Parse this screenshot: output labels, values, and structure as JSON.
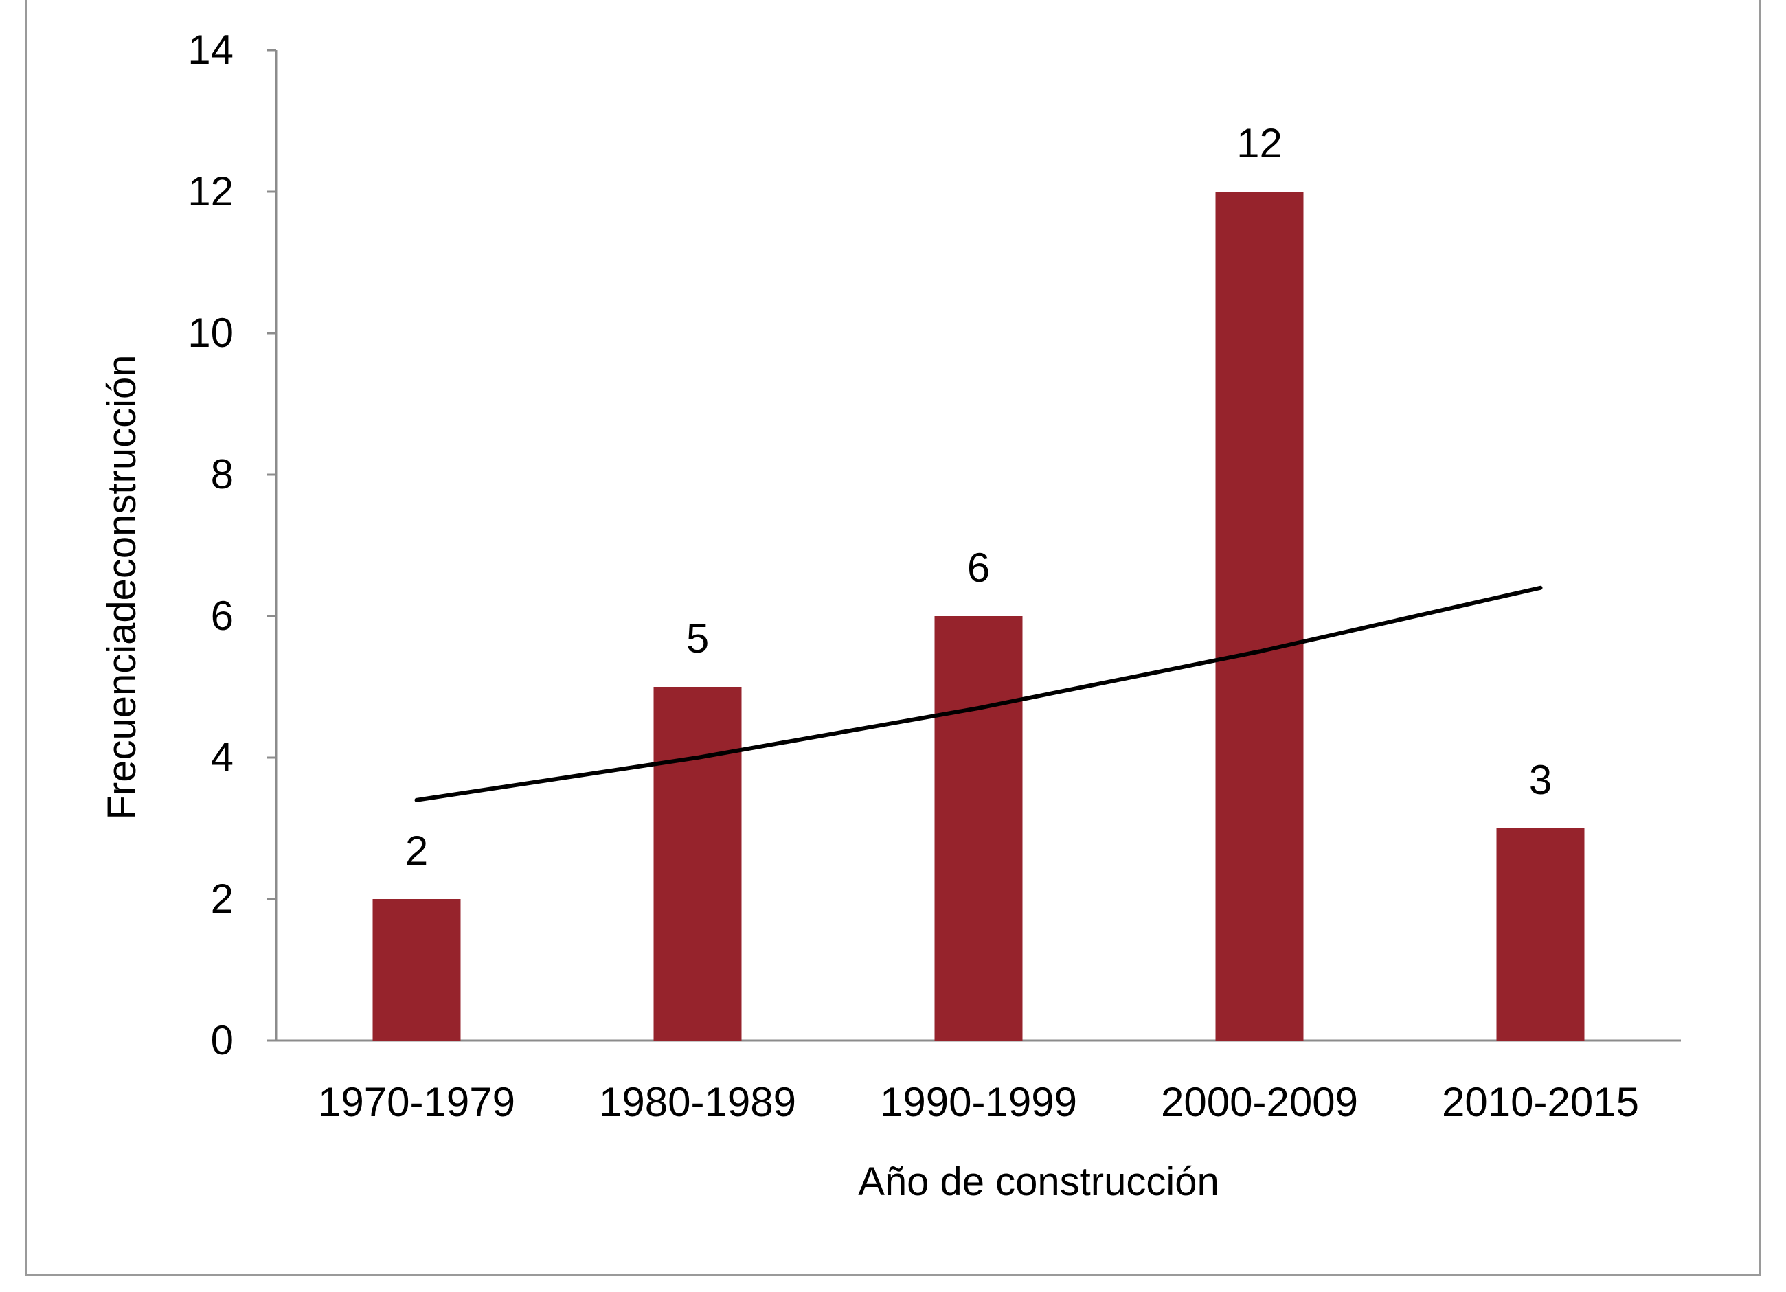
{
  "chart_data": {
    "type": "bar",
    "title": "",
    "xlabel": "Año de construcción",
    "ylabel": "Frecuenciadeconstrucción",
    "categories": [
      "1970-1979",
      "1980-1989",
      "1990-1999",
      "2000-2009",
      "2010-2015"
    ],
    "values": [
      2,
      5,
      6,
      12,
      3
    ],
    "data_labels": [
      "2",
      "5",
      "6",
      "12",
      "3"
    ],
    "ylim": [
      0,
      14
    ],
    "yticks": [
      0,
      2,
      4,
      6,
      8,
      10,
      12,
      14
    ],
    "ytick_labels": [
      "0",
      "2",
      "4",
      "6",
      "8",
      "10",
      "12",
      "14"
    ],
    "grid": false,
    "legend": "none",
    "trendline": {
      "type": "exponential",
      "values": [
        3.4,
        4.0,
        4.7,
        5.5,
        6.4
      ]
    },
    "colors": {
      "bar": "#96232c",
      "trendline": "#000000",
      "axis": "#8c8c8c"
    }
  }
}
